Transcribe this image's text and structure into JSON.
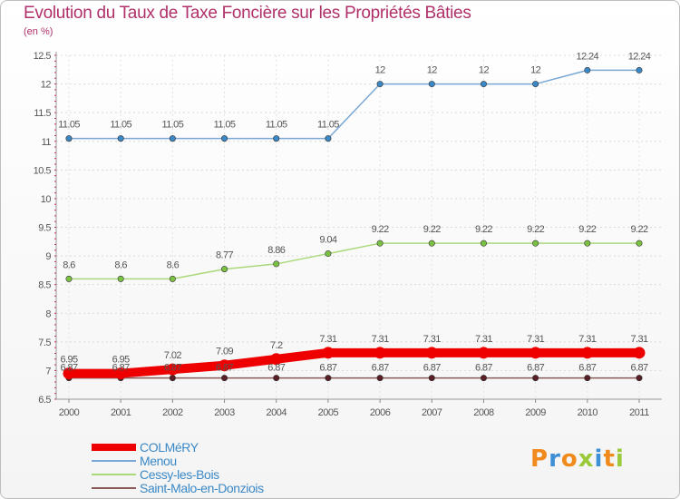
{
  "header": {
    "title": "Evolution du Taux de Taxe Foncière sur les Propriétés Bâties",
    "unit": "(en %)"
  },
  "logo": {
    "letters": [
      "P",
      "r",
      "o",
      "x",
      "i",
      "t",
      "i"
    ],
    "colors": [
      "#f08a1c",
      "#3d8fd6",
      "#f08a1c",
      "#9ac93a",
      "#3d8fd6",
      "#f08a1c",
      "#9ac93a"
    ]
  },
  "chart_data": {
    "type": "line",
    "title": "Evolution du Taux de Taxe Foncière sur les Propriétés Bâties",
    "ylabel": "(en %)",
    "xlabel": "",
    "categories": [
      "2000",
      "2001",
      "2002",
      "2003",
      "2004",
      "2005",
      "2006",
      "2007",
      "2008",
      "2009",
      "2010",
      "2011"
    ],
    "ylim": [
      6.5,
      12.5
    ],
    "yticks": [
      "6.5",
      "7",
      "7.5",
      "8",
      "8.5",
      "9",
      "9.5",
      "10",
      "10.5",
      "11",
      "11.5",
      "12",
      "12.5"
    ],
    "legend_position": "bottom-left",
    "series": [
      {
        "name": "COLMéRY",
        "color": "#ee0000",
        "point_color": "#ee0000",
        "values": [
          6.95,
          6.95,
          7.02,
          7.09,
          7.2,
          7.31,
          7.31,
          7.31,
          7.31,
          7.31,
          7.31,
          7.31
        ],
        "labels": [
          "6.95",
          "6.95",
          "7.02",
          "7.09",
          "7.2",
          "7.31",
          "7.31",
          "7.31",
          "7.31",
          "7.31",
          "7.31",
          "7.31"
        ]
      },
      {
        "name": "Menou",
        "color": "#7aa8d4",
        "point_color": "#3b88c6",
        "values": [
          11.05,
          11.05,
          11.05,
          11.05,
          11.05,
          11.05,
          12,
          12,
          12,
          12,
          12.24,
          12.24
        ],
        "labels": [
          "11.05",
          "11.05",
          "11.05",
          "11.05",
          "11.05",
          "11.05",
          "12",
          "12",
          "12",
          "12",
          "12.24",
          "12.24"
        ]
      },
      {
        "name": "Cessy-les-Bois",
        "color": "#a9d97a",
        "point_color": "#7cc242",
        "values": [
          8.6,
          8.6,
          8.6,
          8.77,
          8.86,
          9.04,
          9.22,
          9.22,
          9.22,
          9.22,
          9.22,
          9.22
        ],
        "labels": [
          "8.6",
          "8.6",
          "8.6",
          "8.77",
          "8.86",
          "9.04",
          "9.22",
          "9.22",
          "9.22",
          "9.22",
          "9.22",
          "9.22"
        ]
      },
      {
        "name": "Saint-Malo-en-Donziois",
        "color": "#8a5a5a",
        "point_color": "#5a1e26",
        "values": [
          6.87,
          6.87,
          6.87,
          6.87,
          6.87,
          6.87,
          6.87,
          6.87,
          6.87,
          6.87,
          6.87,
          6.87
        ],
        "labels": [
          "6.87",
          "6.87",
          "6.87",
          "6.87",
          "6.87",
          "6.87",
          "6.87",
          "6.87",
          "6.87",
          "6.87",
          "6.87",
          "6.87"
        ]
      }
    ]
  }
}
